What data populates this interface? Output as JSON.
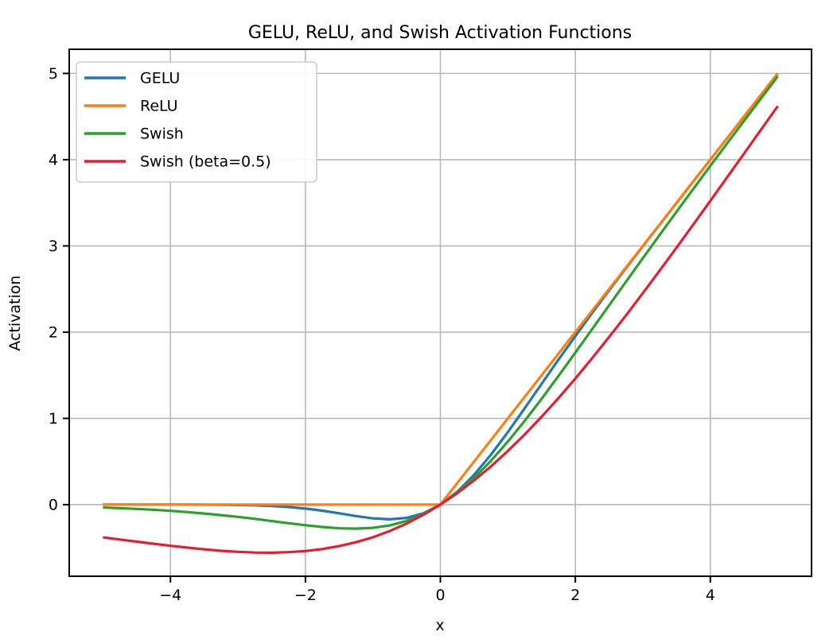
{
  "figure": {
    "background_color": "#ffffff",
    "plot_border_color": "#000000",
    "grid_color": "#b8b8b8",
    "tick_color": "#000000"
  },
  "chart_data": {
    "type": "line",
    "title": "GELU, ReLU, and Swish Activation Functions",
    "xlabel": "x",
    "ylabel": "Activation",
    "xlim": [
      -5.5,
      5.5
    ],
    "ylim": [
      -0.83,
      5.28
    ],
    "grid": true,
    "legend_position": "upper left",
    "xticks": [
      {
        "value": -4,
        "label": "−4"
      },
      {
        "value": -2,
        "label": "−2"
      },
      {
        "value": 0,
        "label": "0"
      },
      {
        "value": 2,
        "label": "2"
      },
      {
        "value": 4,
        "label": "4"
      }
    ],
    "yticks": [
      {
        "value": 0,
        "label": "0"
      },
      {
        "value": 1,
        "label": "1"
      },
      {
        "value": 2,
        "label": "2"
      },
      {
        "value": 3,
        "label": "3"
      },
      {
        "value": 4,
        "label": "4"
      },
      {
        "value": 5,
        "label": "5"
      }
    ],
    "x": [
      -5,
      -4.75,
      -4.5,
      -4.25,
      -4,
      -3.75,
      -3.5,
      -3.25,
      -3,
      -2.75,
      -2.5,
      -2.25,
      -2,
      -1.75,
      -1.5,
      -1.25,
      -1,
      -0.75,
      -0.5,
      -0.25,
      0,
      0.25,
      0.5,
      0.75,
      1,
      1.25,
      1.5,
      1.75,
      2,
      2.25,
      2.5,
      2.75,
      3,
      3.25,
      3.5,
      3.75,
      4,
      4.25,
      4.5,
      4.75,
      5
    ],
    "series": [
      {
        "name": "GELU",
        "color": "#1f77b4",
        "y": [
          0,
          0,
          0,
          0,
          0,
          0,
          -0.001,
          -0.002,
          -0.004,
          -0.008,
          -0.016,
          -0.027,
          -0.046,
          -0.07,
          -0.1,
          -0.132,
          -0.159,
          -0.17,
          -0.154,
          -0.1,
          0,
          0.15,
          0.346,
          0.58,
          0.841,
          1.118,
          1.4,
          1.68,
          1.954,
          2.223,
          2.484,
          2.742,
          2.996,
          3.248,
          3.499,
          3.75,
          4,
          4.25,
          4.5,
          4.75,
          5
        ]
      },
      {
        "name": "ReLU",
        "color": "#ff7f0e",
        "y": [
          0,
          0,
          0,
          0,
          0,
          0,
          0,
          0,
          0,
          0,
          0,
          0,
          0,
          0,
          0,
          0,
          0,
          0,
          0,
          0,
          0,
          0.25,
          0.5,
          0.75,
          1,
          1.25,
          1.5,
          1.75,
          2,
          2.25,
          2.5,
          2.75,
          3,
          3.25,
          3.5,
          3.75,
          4,
          4.25,
          4.5,
          4.75,
          5
        ]
      },
      {
        "name": "Swish",
        "color": "#2ca02c",
        "y": [
          -0.033,
          -0.041,
          -0.049,
          -0.06,
          -0.072,
          -0.086,
          -0.103,
          -0.121,
          -0.142,
          -0.165,
          -0.19,
          -0.215,
          -0.238,
          -0.259,
          -0.274,
          -0.278,
          -0.269,
          -0.241,
          -0.189,
          -0.109,
          0,
          0.141,
          0.311,
          0.509,
          0.731,
          0.972,
          1.226,
          1.491,
          1.762,
          2.035,
          2.31,
          2.585,
          2.858,
          3.129,
          3.397,
          3.664,
          3.928,
          4.19,
          4.451,
          4.709,
          4.967
        ]
      },
      {
        "name": "Swish (beta=0.5)",
        "color": "#e51e2e",
        "y": [
          -0.379,
          -0.404,
          -0.429,
          -0.453,
          -0.477,
          -0.498,
          -0.518,
          -0.535,
          -0.547,
          -0.555,
          -0.557,
          -0.551,
          -0.538,
          -0.515,
          -0.481,
          -0.436,
          -0.378,
          -0.306,
          -0.219,
          -0.117,
          0,
          0.133,
          0.281,
          0.444,
          0.622,
          0.814,
          1.019,
          1.235,
          1.462,
          1.699,
          1.943,
          2.195,
          2.453,
          2.715,
          2.982,
          3.251,
          3.523,
          3.797,
          4.071,
          4.346,
          4.621
        ]
      }
    ]
  }
}
